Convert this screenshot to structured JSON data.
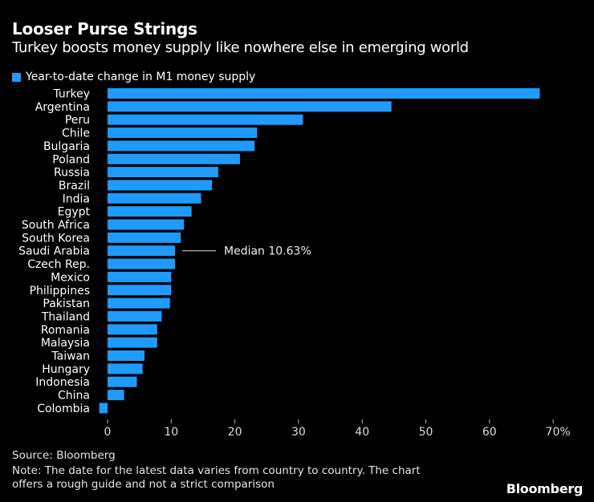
{
  "header": {
    "title": "Looser Purse Strings",
    "subtitle": "Turkey boosts money supply like nowhere else in emerging world"
  },
  "chart_data": {
    "type": "bar",
    "orientation": "horizontal",
    "title": "Looser Purse Strings",
    "subtitle": "Turkey boosts money supply like nowhere else in emerging world",
    "categories": [
      "Turkey",
      "Argentina",
      "Peru",
      "Chile",
      "Bulgaria",
      "Poland",
      "Russia",
      "Brazil",
      "India",
      "Egypt",
      "South Africa",
      "South Korea",
      "Saudi Arabia",
      "Czech Rep.",
      "Mexico",
      "Philippines",
      "Pakistan",
      "Thailand",
      "Romania",
      "Malaysia",
      "Taiwan",
      "Hungary",
      "Indonesia",
      "China",
      "Colombia"
    ],
    "series": [
      {
        "name": "Year-to-date change in M1 money supply",
        "color": "#1f9bff",
        "values": [
          67.9,
          44.6,
          30.7,
          23.5,
          23.1,
          20.8,
          17.4,
          16.4,
          14.7,
          13.2,
          12.0,
          11.5,
          10.6,
          10.6,
          10.0,
          10.0,
          9.8,
          8.5,
          7.8,
          7.8,
          5.8,
          5.5,
          4.6,
          2.6,
          -1.3
        ]
      }
    ],
    "xlim": [
      -2,
      70
    ],
    "xticks": [
      0,
      10,
      20,
      30,
      40,
      50,
      60,
      70
    ],
    "xtick_labels": [
      "0",
      "10",
      "20",
      "30",
      "40",
      "50",
      "60",
      "70%"
    ],
    "xlabel": "",
    "ylabel": "",
    "grid": false,
    "legend_position": "top-left",
    "annotation": {
      "text": "Median 10.63%",
      "value": 10.63,
      "category": "Saudi Arabia"
    }
  },
  "footer": {
    "source": "Source: Bloomberg",
    "note_line1": "Note: The date for the latest data varies from country to country. The chart",
    "note_line2": "offers a rough guide and not a strict comparison",
    "logo": "Bloomberg"
  }
}
